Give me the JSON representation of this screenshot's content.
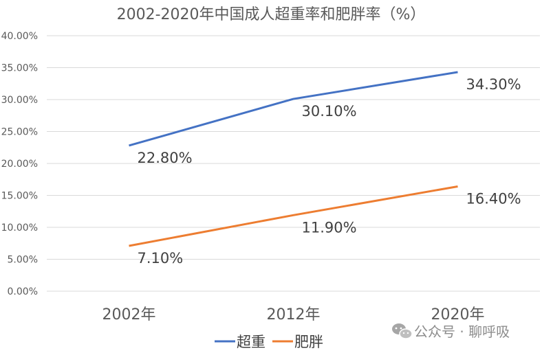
{
  "chart_data": {
    "type": "line",
    "title": "2002-2020年中国成人超重率和肥胖率（%）",
    "categories": [
      "2002年",
      "2012年",
      "2020年"
    ],
    "series": [
      {
        "name": "超重",
        "values": [
          22.8,
          30.1,
          34.3
        ],
        "labels": [
          "22.80%",
          "30.10%",
          "34.30%"
        ],
        "color": "#4472c4"
      },
      {
        "name": "肥胖",
        "values": [
          7.1,
          11.9,
          16.4
        ],
        "labels": [
          "7.10%",
          "11.90%",
          "16.40%"
        ],
        "color": "#ed7d31"
      }
    ],
    "ylim": [
      0,
      40
    ],
    "yticks": [
      0,
      5,
      10,
      15,
      20,
      25,
      30,
      35,
      40
    ],
    "ytick_labels": [
      "0.00%",
      "5.00%",
      "10.00%",
      "15.00%",
      "20.00%",
      "25.00%",
      "30.00%",
      "35.00%",
      "40.00%"
    ],
    "grid": true,
    "legend_position": "bottom"
  },
  "watermark": {
    "text": "公众号 · 聊呼吸",
    "icon": "wechat-icon"
  }
}
